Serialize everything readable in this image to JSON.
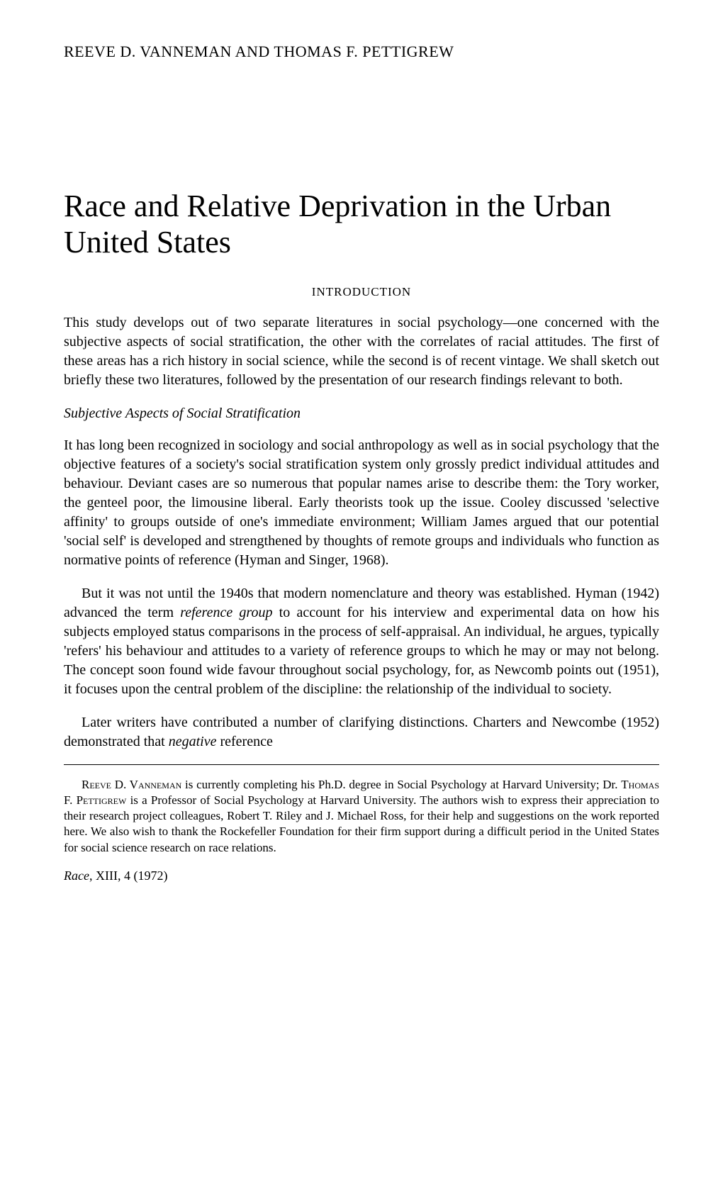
{
  "authors": "REEVE D. VANNEMAN AND THOMAS F. PETTIGREW",
  "title": "Race and Relative Deprivation in the Urban United States",
  "sectionLabel": "INTRODUCTION",
  "introPara": "This study develops out of two separate literatures in social psychology—one concerned with the subjective aspects of social stratification, the other with the correlates of racial attitudes. The first of these areas has a rich history in social science, while the second is of recent vintage. We shall sketch out briefly these two literatures, followed by the presentation of our research findings relevant to both.",
  "subheading": "Subjective Aspects of Social Stratification",
  "para1": "It has long been recognized in sociology and social anthropology as well as in social psychology that the objective features of a society's social stratification system only grossly predict individual attitudes and behaviour. Deviant cases are so numerous that popular names arise to describe them: the Tory worker, the genteel poor, the limousine liberal. Early theorists took up the issue. Cooley discussed 'selective affinity' to groups outside of one's immediate environment; William James argued that our potential 'social self' is developed and strengthened by thoughts of remote groups and individuals who function as normative points of reference (Hyman and Singer, 1968).",
  "para2_a": "But it was not until the 1940s that modern nomenclature and theory was established. Hyman (1942) advanced the term ",
  "para2_italic": "reference group",
  "para2_b": " to account for his interview and experimental data on how his subjects employed status comparisons in the process of self-appraisal. An individual, he argues, typically 'refers' his behaviour and attitudes to a variety of reference groups to which he may or may not belong. The concept soon found wide favour throughout social psychology, for, as Newcomb points out (1951), it focuses upon the central problem of the discipline: the relationship of the individual to society.",
  "para3_a": "Later writers have contributed a number of clarifying distinctions. Charters and Newcombe (1952) demonstrated that ",
  "para3_italic": "negative",
  "para3_b": " reference",
  "footnote_a": "Reeve D. Vanneman",
  "footnote_b": " is currently completing his Ph.D. degree in Social Psychology at Harvard University; Dr. ",
  "footnote_c": "Thomas F. Pettigrew",
  "footnote_d": " is a Professor of Social Psychology at Harvard University. The authors wish to express their appreciation to their research project colleagues, Robert T. Riley and J. Michael Ross, for their help and suggestions on the work reported here. We also wish to thank the Rockefeller Foundation for their firm support during a difficult period in the United States for social science research on race relations.",
  "citation_a": "Race",
  "citation_b": ", XIII, 4 (1972)"
}
